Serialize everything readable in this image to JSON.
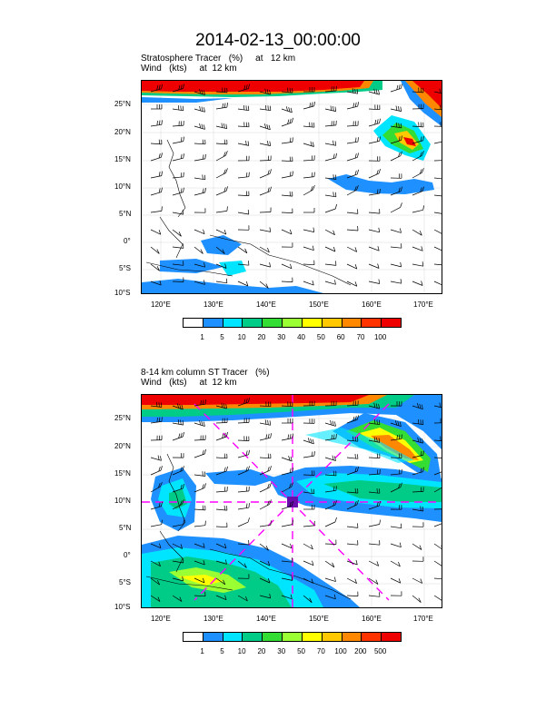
{
  "main_title": "2014-02-13_00:00:00",
  "panels": [
    {
      "title_line1": "Stratosphere Tracer   (%)     at   12 km",
      "title_line2": "Wind   (kts)     at  12 km",
      "lat_labels": [
        "25°N",
        "20°N",
        "15°N",
        "10°N",
        "5°N",
        "0°",
        "5°S",
        "10°S"
      ],
      "lon_labels": [
        "120°E",
        "130°E",
        "140°E",
        "150°E",
        "160°E",
        "170°E"
      ],
      "colorbar_labels": [
        "1",
        "5",
        "10",
        "20",
        "30",
        "40",
        "50",
        "60",
        "70",
        "100"
      ],
      "colorbar_colors": [
        "#ffffff",
        "#1e90ff",
        "#00e5ff",
        "#00cc88",
        "#33dd33",
        "#9aff33",
        "#ffff00",
        "#ffc800",
        "#ff8800",
        "#ff3300",
        "#ee0000"
      ]
    },
    {
      "title_line1": "8-14 km column ST Tracer   (%)",
      "title_line2": "Wind   (kts)     at  12 km",
      "lat_labels": [
        "25°N",
        "20°N",
        "15°N",
        "10°N",
        "5°N",
        "0°",
        "5°S",
        "10°S"
      ],
      "lon_labels": [
        "120°E",
        "130°E",
        "140°E",
        "150°E",
        "160°E",
        "170°E"
      ],
      "colorbar_labels": [
        "1",
        "5",
        "10",
        "20",
        "30",
        "50",
        "70",
        "100",
        "200",
        "500"
      ],
      "colorbar_colors": [
        "#ffffff",
        "#1e90ff",
        "#00e5ff",
        "#00cc88",
        "#33dd33",
        "#9aff33",
        "#ffff00",
        "#ffc800",
        "#ff8800",
        "#ff3300",
        "#ee0000"
      ]
    }
  ]
}
